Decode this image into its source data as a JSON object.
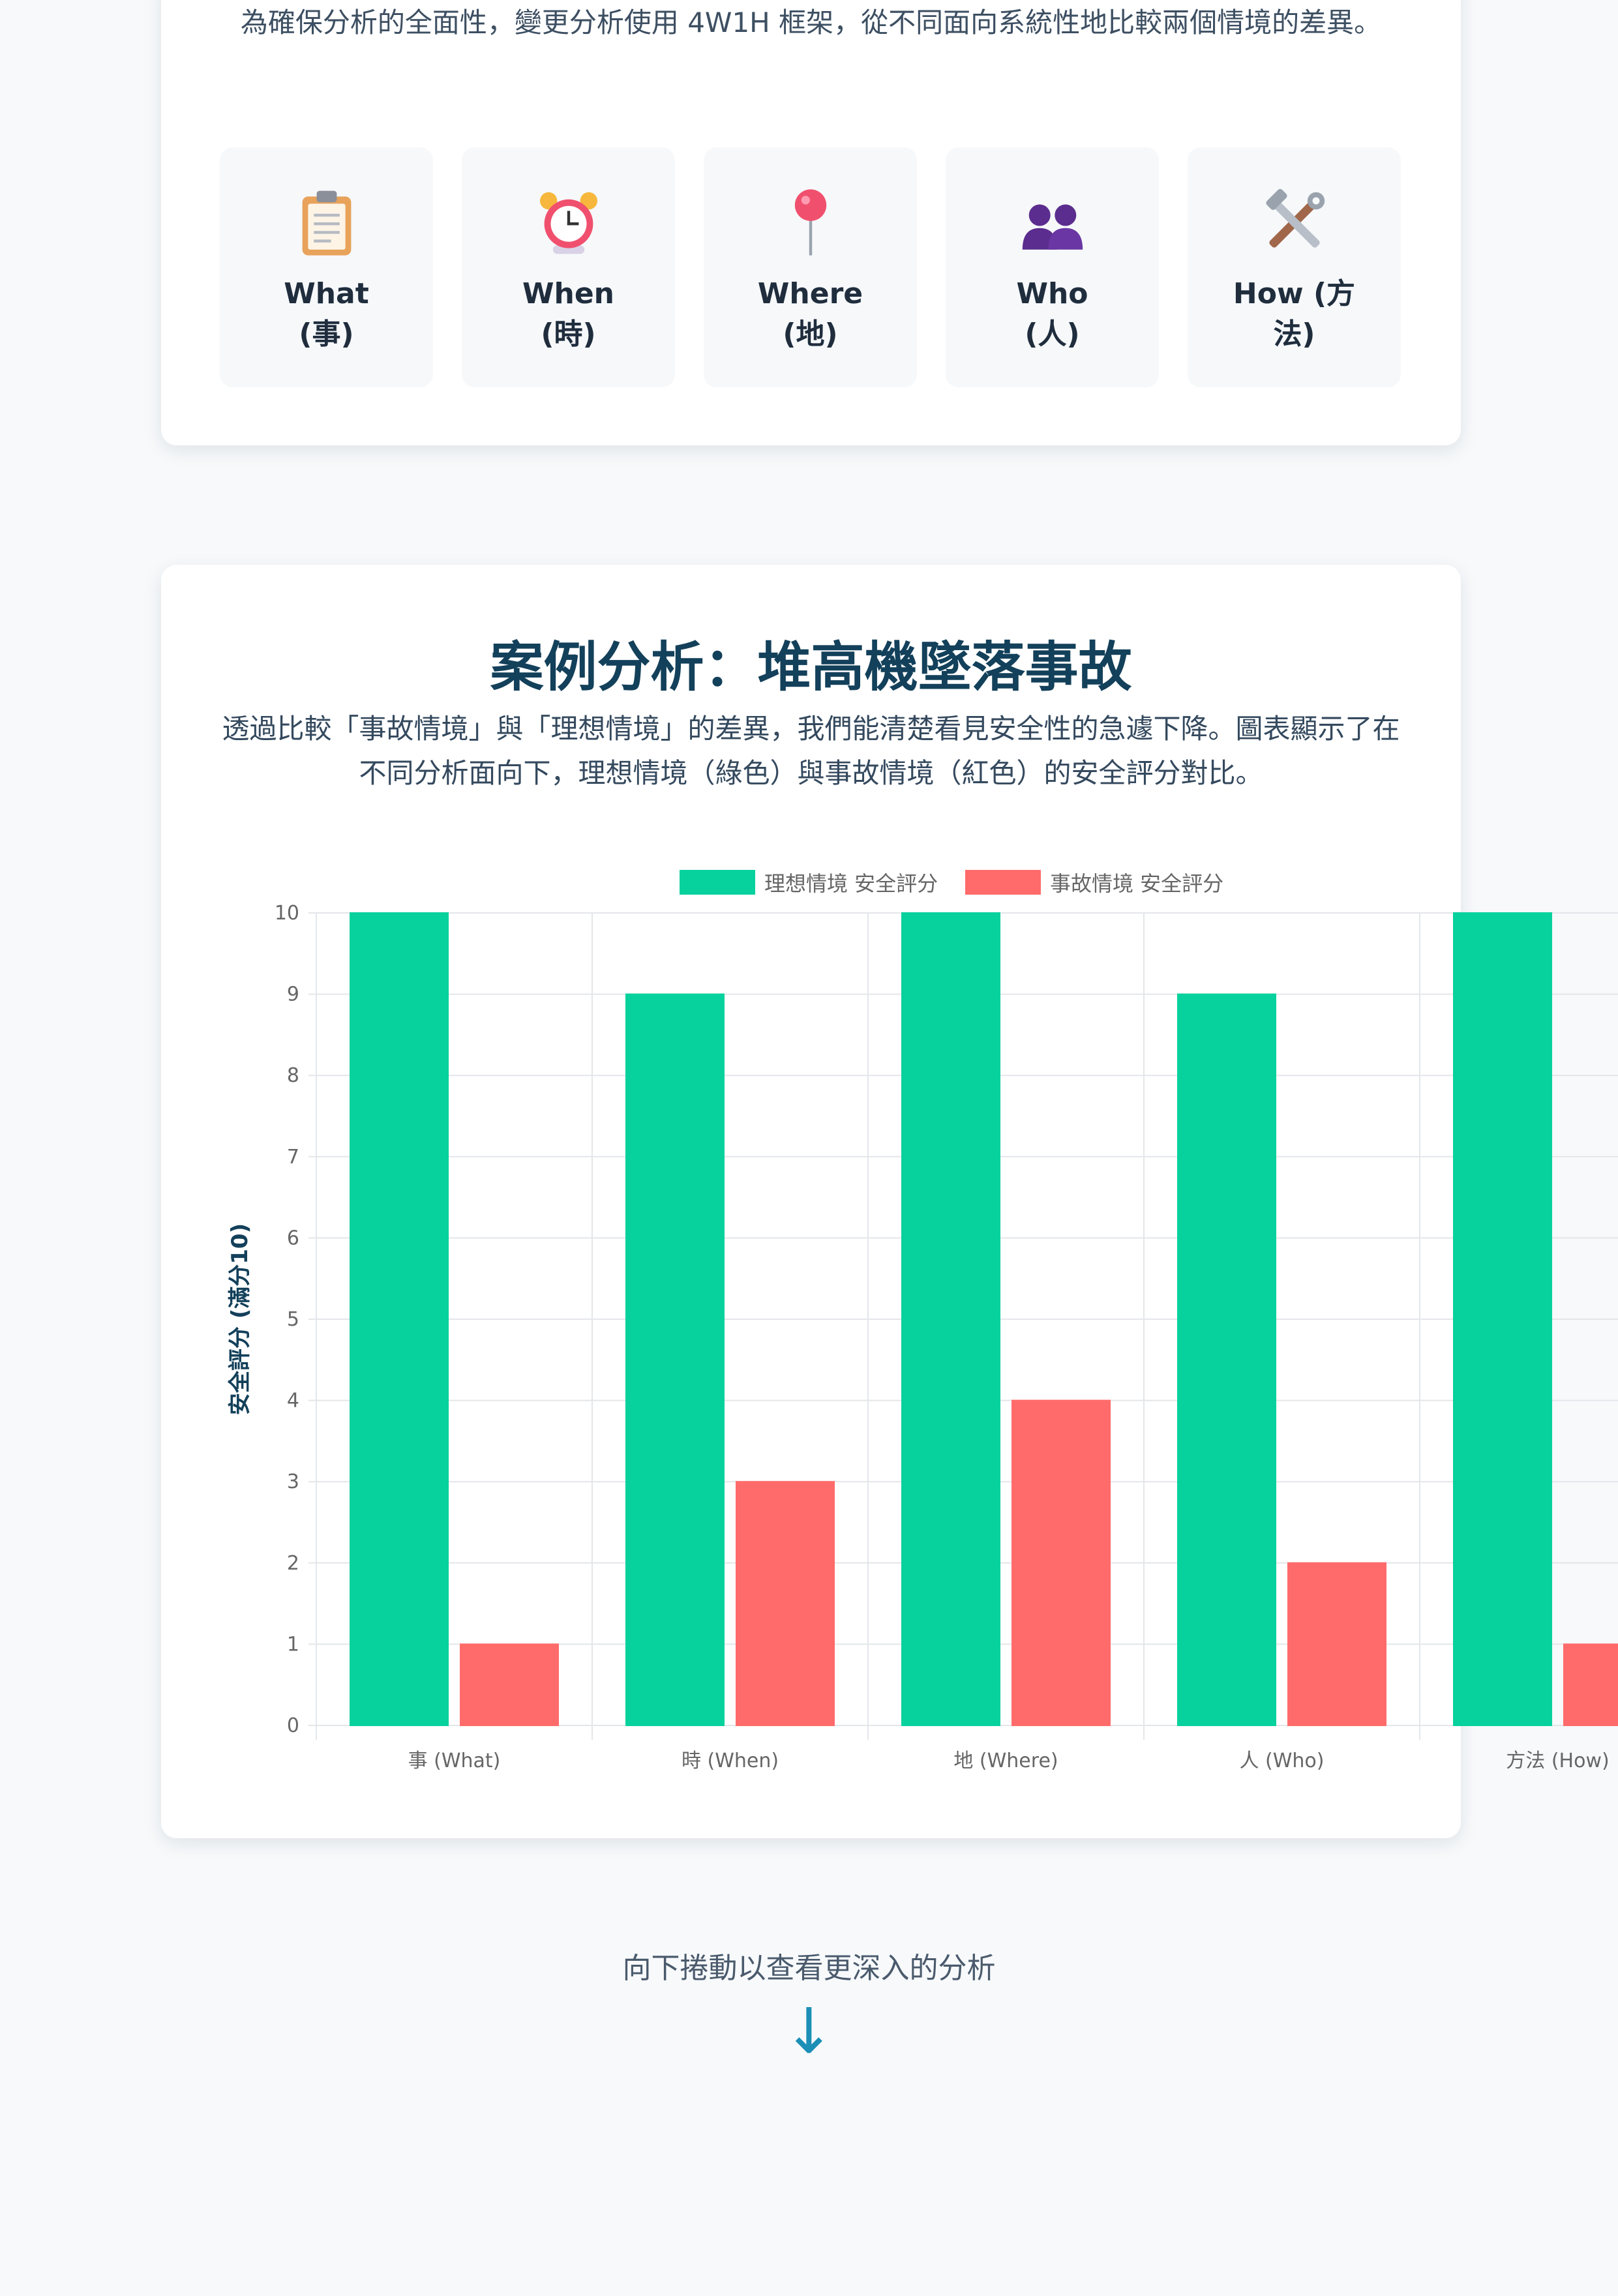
{
  "intro": {
    "text": "為確保分析的全面性，變更分析使用 4W1H 框架，從不同面向系統性地比較兩個情境的差異。"
  },
  "framework": {
    "items": [
      {
        "icon": "clipboard-icon",
        "label": "What (事)"
      },
      {
        "icon": "alarm-clock-icon",
        "label": "When (時)"
      },
      {
        "icon": "pushpin-icon",
        "label": "Where (地)"
      },
      {
        "icon": "people-icon",
        "label": "Who (人)"
      },
      {
        "icon": "tools-icon",
        "label": "How (方法)"
      }
    ]
  },
  "case": {
    "title": "案例分析：堆高機墜落事故",
    "description": "透過比較「事故情境」與「理想情境」的差異，我們能清楚看見安全性的急遽下降。圖表顯示了在不同分析面向下，理想情境（綠色）與事故情境（紅色）的安全評分對比。"
  },
  "chart_data": {
    "type": "bar",
    "categories": [
      "事 (What)",
      "時 (When)",
      "地 (Where)",
      "人 (Who)",
      "方法 (How)"
    ],
    "series": [
      {
        "name": "理想情境 安全評分",
        "values": [
          10,
          9,
          10,
          9,
          10
        ],
        "color": "#07d19d"
      },
      {
        "name": "事故情境 安全評分",
        "values": [
          1,
          3,
          4,
          2,
          1
        ],
        "color": "#ff6b6b"
      }
    ],
    "ylabel": "安全評分 (滿分10)",
    "ylim": [
      0,
      10
    ],
    "yticks": [
      "0",
      "1",
      "2",
      "3",
      "4",
      "5",
      "6",
      "7",
      "8",
      "9",
      "10"
    ],
    "grid": true,
    "legend": "top-center"
  },
  "footer": {
    "scroll_hint": "向下捲動以查看更深入的分析",
    "arrow": "↓"
  }
}
